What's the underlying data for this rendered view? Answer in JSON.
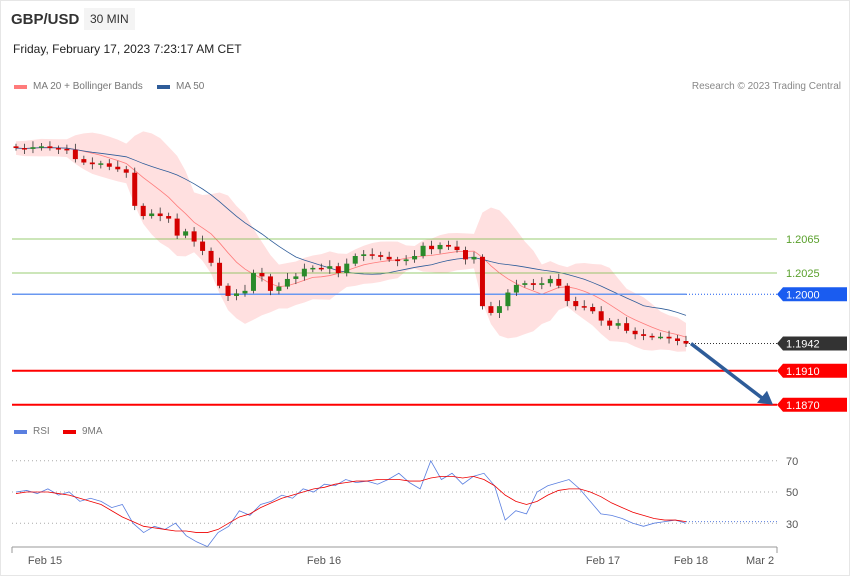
{
  "header": {
    "symbol": "GBP/USD",
    "timeframe": "30 MIN",
    "datetime": "Friday, February 17, 2023 7:23:17 AM CET"
  },
  "legend": {
    "ma20": "MA 20 + Bollinger Bands",
    "ma50": "MA 50",
    "rsi": "RSI",
    "rsi_ma": "9MA",
    "credit": "Research © 2023 Trading Central"
  },
  "colors": {
    "ma20": "#ff7b7b",
    "ma50": "#2e5c99",
    "bands": "#ffe0e0",
    "support": "#ff0000",
    "resistance": "#77bb44",
    "pivot": "#1a5cf0",
    "last": "#333333",
    "up": "#2a8a2a",
    "down": "#d40000",
    "rsi": "#5a7fe0"
  },
  "levels": {
    "resistance": [
      {
        "value": 1.2065,
        "label": "1.2065"
      },
      {
        "value": 1.2025,
        "label": "1.2025"
      }
    ],
    "pivot": {
      "value": 1.2,
      "label": "1.2000"
    },
    "last": {
      "value": 1.1942,
      "label": "1.1942"
    },
    "support": [
      {
        "value": 1.191,
        "label": "1.1910"
      },
      {
        "value": 1.187,
        "label": "1.1870"
      }
    ]
  },
  "xaxis": {
    "labels": [
      "Feb 15",
      "Feb 16",
      "Feb 17",
      "Feb 18",
      "Mar 2"
    ]
  },
  "rsi_axis": {
    "labels": [
      "70",
      "50",
      "30"
    ]
  },
  "chart_data": {
    "type": "candlestick",
    "closes": [
      1.2172,
      1.2171,
      1.2173,
      1.2174,
      1.2172,
      1.2171,
      1.217,
      1.2159,
      1.2155,
      1.2153,
      1.2154,
      1.215,
      1.2147,
      1.2143,
      1.2104,
      1.2092,
      1.2095,
      1.2092,
      1.2089,
      1.2069,
      1.2074,
      1.2062,
      1.2051,
      1.2037,
      1.201,
      1.1998,
      1.2001,
      1.2004,
      1.2025,
      1.2021,
      1.2004,
      1.2009,
      1.2018,
      1.2021,
      1.203,
      1.2031,
      1.203,
      1.2033,
      1.2025,
      1.2036,
      1.2045,
      1.2047,
      1.2046,
      1.2044,
      1.2041,
      1.2039,
      1.2041,
      1.2045,
      1.2057,
      1.2053,
      1.2058,
      1.2056,
      1.2052,
      1.2041,
      1.2044,
      1.1986,
      1.1978,
      1.1986,
      1.2002,
      1.2011,
      1.2013,
      1.2011,
      1.2013,
      1.2018,
      1.201,
      1.1992,
      1.1986,
      1.1985,
      1.198,
      1.1969,
      1.1963,
      1.1966,
      1.1957,
      1.1953,
      1.1951,
      1.195,
      1.195,
      1.1948,
      1.1945,
      1.1942
    ],
    "forecast": {
      "from": 1.1942,
      "to": 1.187
    },
    "rsi": [
      50,
      51,
      49,
      52,
      48,
      50,
      44,
      46,
      44,
      40,
      42,
      30,
      24,
      28,
      26,
      30,
      22,
      18,
      15,
      24,
      28,
      38,
      35,
      42,
      44,
      48,
      46,
      52,
      50,
      55,
      54,
      58,
      56,
      57,
      55,
      58,
      62,
      56,
      52,
      70,
      58,
      62,
      55,
      60,
      62,
      54,
      32,
      38,
      36,
      50,
      54,
      56,
      58,
      52,
      44,
      36,
      35,
      33,
      30,
      28,
      30,
      31,
      32,
      30
    ],
    "rsi_ma": [
      49,
      50,
      50,
      50,
      49,
      48,
      46,
      44,
      42,
      38,
      34,
      31,
      28,
      27,
      26,
      25,
      25,
      24,
      24,
      26,
      30,
      34,
      36,
      40,
      43,
      46,
      48,
      50,
      52,
      53,
      55,
      56,
      57,
      57,
      58,
      58,
      58,
      57,
      57,
      59,
      60,
      60,
      59,
      60,
      58,
      54,
      48,
      44,
      42,
      44,
      48,
      51,
      52,
      52,
      50,
      47,
      43,
      40,
      37,
      35,
      33,
      32,
      32,
      31
    ]
  }
}
